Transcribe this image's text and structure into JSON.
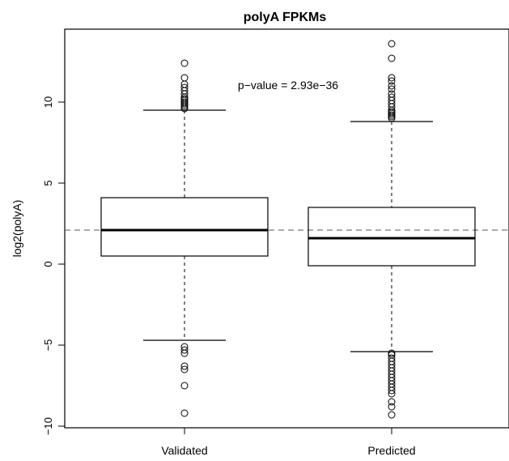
{
  "chart_data": {
    "type": "boxplot",
    "title": "polyA FPKMs",
    "ylabel": "log2(polyA)",
    "xlabel": "",
    "ylim": [
      -10,
      14
    ],
    "yticks": [
      -10,
      -5,
      0,
      5,
      10
    ],
    "ytick_labels": [
      "−10",
      "−5",
      "0",
      "5",
      "10"
    ],
    "categories": [
      "Validated",
      "Predicted"
    ],
    "boxes": [
      {
        "name": "Validated",
        "whisker_low": -4.7,
        "q1": 0.5,
        "median": 2.1,
        "q3": 4.1,
        "whisker_high": 9.5,
        "outliers": [
          9.6,
          9.7,
          9.8,
          9.9,
          10.0,
          10.1,
          10.2,
          10.3,
          10.5,
          10.7,
          10.9,
          11.1,
          11.5,
          12.4,
          -5.1,
          -5.3,
          -5.5,
          -6.3,
          -6.5,
          -7.5,
          -9.2
        ]
      },
      {
        "name": "Predicted",
        "whisker_low": -5.4,
        "q1": -0.1,
        "median": 1.6,
        "q3": 3.5,
        "whisker_high": 8.8,
        "outliers": [
          9.0,
          9.1,
          9.2,
          9.3,
          9.4,
          9.5,
          9.7,
          9.9,
          10.1,
          10.3,
          10.5,
          10.8,
          11.0,
          11.3,
          11.5,
          12.7,
          13.6,
          -5.5,
          -5.6,
          -5.8,
          -6.0,
          -6.2,
          -6.4,
          -6.6,
          -6.8,
          -7.0,
          -7.2,
          -7.4,
          -7.6,
          -7.8,
          -8.0,
          -8.5,
          -8.8,
          -9.3
        ]
      }
    ],
    "reference_line": {
      "y": 2.1,
      "style": "dashed"
    },
    "annotation": {
      "text": "p−value =  2.93e−36",
      "x": 1.5,
      "y": 11.0
    },
    "grid": false,
    "colors": {
      "line": "#000000",
      "reference": "#555555",
      "background": "#ffffff"
    }
  }
}
